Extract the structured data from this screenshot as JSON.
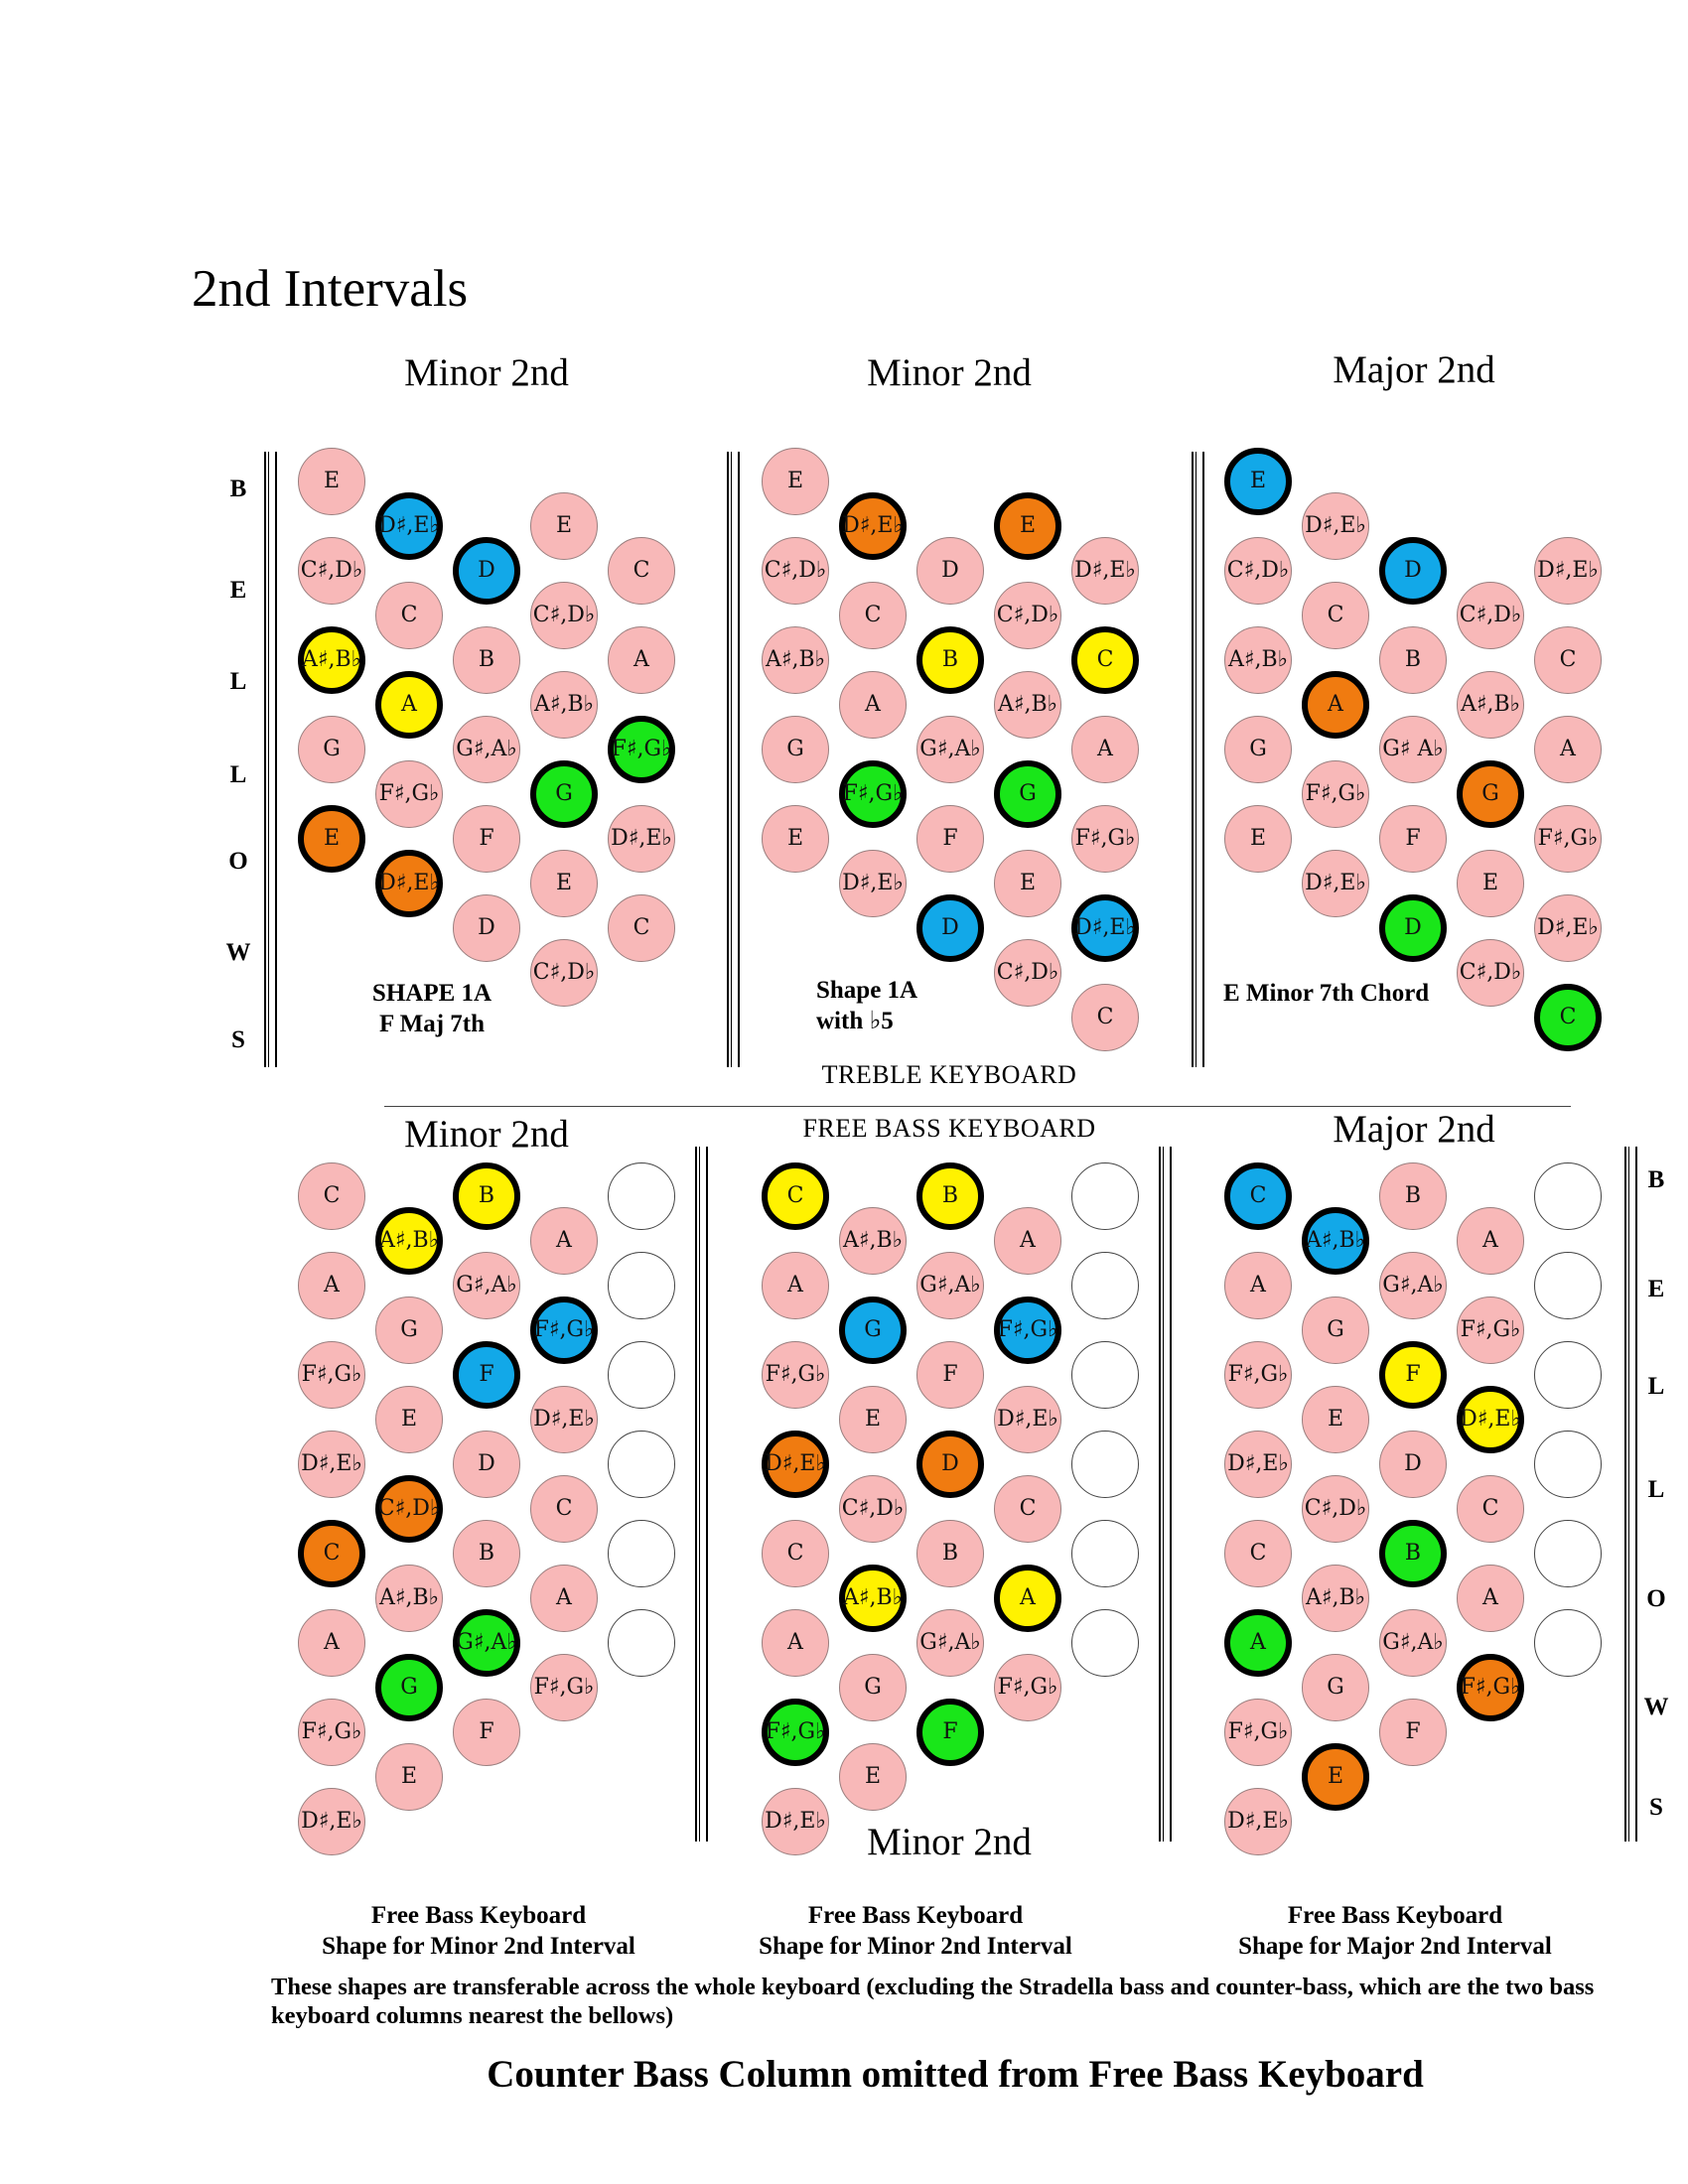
{
  "page_title": "2nd Intervals",
  "colors": {
    "pink": "#f8b8b8",
    "orange": "#f07b10",
    "blue": "#12a8e8",
    "yellow": "#fff200",
    "green": "#19e619",
    "empty": "#ffffff"
  },
  "bellows_letters": [
    "B",
    "E",
    "L",
    "L",
    "O",
    "W",
    "S"
  ],
  "treble_label": "TREBLE KEYBOARD",
  "free_bass_label": "FREE BASS KEYBOARD",
  "footer": "Counter Bass Column omitted from Free Bass Keyboard",
  "note": "These shapes are transferable across the whole keyboard (excluding the Stradella bass and counter-bass, which are the two bass keyboard columns nearest the bellows)",
  "panels": [
    {
      "title": "Minor 2nd",
      "caption_lines": [
        "SHAPE 1A",
        "F Maj 7th"
      ],
      "columns": [
        [
          {
            "n": "E"
          },
          {
            "n": "C♯,D♭"
          },
          {
            "n": "A♯,B♭",
            "c": "yellow"
          },
          {
            "n": "G"
          },
          {
            "n": "E",
            "c": "orange"
          }
        ],
        [
          {
            "n": "D♯,E♭",
            "c": "blue"
          },
          {
            "n": "C"
          },
          {
            "n": "A",
            "c": "yellow"
          },
          {
            "n": "F♯,G♭"
          },
          {
            "n": "D♯,E♭",
            "c": "orange"
          }
        ],
        [
          {
            "n": "D",
            "c": "blue"
          },
          {
            "n": "B"
          },
          {
            "n": "G♯,A♭"
          },
          {
            "n": "F"
          },
          {
            "n": "D"
          }
        ],
        [
          {
            "n": "E"
          },
          {
            "n": "C♯,D♭"
          },
          {
            "n": "A♯,B♭"
          },
          {
            "n": "G",
            "c": "green"
          },
          {
            "n": "E"
          },
          {
            "n": "C♯,D♭"
          }
        ],
        [
          {
            "n": "C"
          },
          {
            "n": "A"
          },
          {
            "n": "F♯,G♭",
            "c": "green"
          },
          {
            "n": "D♯,E♭"
          },
          {
            "n": "C"
          }
        ]
      ]
    },
    {
      "title": "Minor 2nd",
      "caption_lines": [
        "Shape 1A",
        "with ♭5"
      ],
      "columns": [
        [
          {
            "n": "E"
          },
          {
            "n": "C♯,D♭"
          },
          {
            "n": "A♯,B♭"
          },
          {
            "n": "G"
          },
          {
            "n": "E"
          }
        ],
        [
          {
            "n": "D♯,E♭",
            "c": "orange"
          },
          {
            "n": "C"
          },
          {
            "n": "A"
          },
          {
            "n": "F♯,G♭",
            "c": "green"
          },
          {
            "n": "D♯,E♭"
          }
        ],
        [
          {
            "n": "D"
          },
          {
            "n": "B",
            "c": "yellow"
          },
          {
            "n": "G♯,A♭"
          },
          {
            "n": "F"
          },
          {
            "n": "D",
            "c": "blue"
          }
        ],
        [
          {
            "n": "E",
            "c": "orange"
          },
          {
            "n": "C♯,D♭"
          },
          {
            "n": "A♯,B♭"
          },
          {
            "n": "G",
            "c": "green"
          },
          {
            "n": "E"
          },
          {
            "n": "C♯,D♭"
          }
        ],
        [
          {
            "n": "D♯,E♭"
          },
          {
            "n": "C",
            "c": "yellow"
          },
          {
            "n": "A"
          },
          {
            "n": "F♯,G♭"
          },
          {
            "n": "D♯,E♭",
            "c": "blue"
          },
          {
            "n": "C"
          }
        ]
      ]
    },
    {
      "title": "Major 2nd",
      "caption_lines": [
        "E Minor 7th Chord"
      ],
      "columns": [
        [
          {
            "n": "E",
            "c": "blue"
          },
          {
            "n": "C♯,D♭"
          },
          {
            "n": "A♯,B♭"
          },
          {
            "n": "G"
          },
          {
            "n": "E"
          }
        ],
        [
          {
            "n": "D♯,E♭"
          },
          {
            "n": "C"
          },
          {
            "n": "A",
            "c": "orange"
          },
          {
            "n": "F♯,G♭"
          },
          {
            "n": "D♯,E♭"
          }
        ],
        [
          {
            "n": "D",
            "c": "blue"
          },
          {
            "n": "B"
          },
          {
            "n": "G♯ A♭"
          },
          {
            "n": "F"
          },
          {
            "n": "D",
            "c": "green"
          }
        ],
        [
          {
            "n": "C♯,D♭"
          },
          {
            "n": "A♯,B♭"
          },
          {
            "n": "G",
            "c": "orange"
          },
          {
            "n": "E"
          },
          {
            "n": "C♯,D♭"
          }
        ],
        [
          {
            "n": "D♯,E♭"
          },
          {
            "n": "C"
          },
          {
            "n": "A"
          },
          {
            "n": "F♯,G♭"
          },
          {
            "n": "D♯,E♭"
          },
          {
            "n": "C",
            "c": "green"
          }
        ]
      ]
    },
    {
      "title": "Minor 2nd",
      "caption_lines": [
        "Free Bass Keyboard",
        "Shape for Minor 2nd Interval"
      ],
      "columns": [
        [
          {
            "n": "C"
          },
          {
            "n": "A"
          },
          {
            "n": "F♯,G♭"
          },
          {
            "n": "D♯,E♭"
          },
          {
            "n": "C",
            "c": "orange"
          },
          {
            "n": "A"
          },
          {
            "n": "F♯,G♭"
          },
          {
            "n": "D♯,E♭"
          }
        ],
        [
          {
            "n": "A♯,B♭",
            "c": "yellow"
          },
          {
            "n": "G"
          },
          {
            "n": "E"
          },
          {
            "n": "C♯,D♭",
            "c": "orange"
          },
          {
            "n": "A♯,B♭"
          },
          {
            "n": "G",
            "c": "green"
          },
          {
            "n": "E"
          }
        ],
        [
          {
            "n": "B",
            "c": "yellow"
          },
          {
            "n": "G♯,A♭"
          },
          {
            "n": "F",
            "c": "blue"
          },
          {
            "n": "D"
          },
          {
            "n": "B"
          },
          {
            "n": "G♯,A♭",
            "c": "green"
          },
          {
            "n": "F"
          }
        ],
        [
          {
            "n": "A"
          },
          {
            "n": "F♯,G♭",
            "c": "blue"
          },
          {
            "n": "D♯,E♭"
          },
          {
            "n": "C"
          },
          {
            "n": "A"
          },
          {
            "n": "F♯,G♭"
          }
        ],
        [
          {
            "n": "",
            "c": "empty"
          },
          {
            "n": "",
            "c": "empty"
          },
          {
            "n": "",
            "c": "empty"
          },
          {
            "n": "",
            "c": "empty"
          },
          {
            "n": "",
            "c": "empty"
          },
          {
            "n": "",
            "c": "empty"
          }
        ]
      ]
    },
    {
      "title": "Minor 2nd",
      "caption_lines": [
        "Free Bass Keyboard",
        "Shape for Minor 2nd Interval"
      ],
      "columns": [
        [
          {
            "n": "C",
            "c": "yellow"
          },
          {
            "n": "A"
          },
          {
            "n": "F♯,G♭"
          },
          {
            "n": "D♯,E♭",
            "c": "orange"
          },
          {
            "n": "C"
          },
          {
            "n": "A"
          },
          {
            "n": "F♯,G♭",
            "c": "green"
          },
          {
            "n": "D♯,E♭"
          }
        ],
        [
          {
            "n": "A♯,B♭"
          },
          {
            "n": "G",
            "c": "blue"
          },
          {
            "n": "E"
          },
          {
            "n": "C♯,D♭"
          },
          {
            "n": "A♯,B♭",
            "c": "yellow"
          },
          {
            "n": "G"
          },
          {
            "n": "E"
          }
        ],
        [
          {
            "n": "B",
            "c": "yellow"
          },
          {
            "n": "G♯,A♭"
          },
          {
            "n": "F"
          },
          {
            "n": "D",
            "c": "orange"
          },
          {
            "n": "B"
          },
          {
            "n": "G♯,A♭"
          },
          {
            "n": "F",
            "c": "green"
          }
        ],
        [
          {
            "n": "A"
          },
          {
            "n": "F♯,G♭",
            "c": "blue"
          },
          {
            "n": "D♯,E♭"
          },
          {
            "n": "C"
          },
          {
            "n": "A",
            "c": "yellow"
          },
          {
            "n": "F♯,G♭"
          }
        ],
        [
          {
            "n": "",
            "c": "empty"
          },
          {
            "n": "",
            "c": "empty"
          },
          {
            "n": "",
            "c": "empty"
          },
          {
            "n": "",
            "c": "empty"
          },
          {
            "n": "",
            "c": "empty"
          },
          {
            "n": "",
            "c": "empty"
          }
        ]
      ]
    },
    {
      "title": "Major 2nd",
      "caption_lines": [
        "Free Bass Keyboard",
        "Shape for Major 2nd Interval"
      ],
      "columns": [
        [
          {
            "n": "C",
            "c": "blue"
          },
          {
            "n": "A"
          },
          {
            "n": "F♯,G♭"
          },
          {
            "n": "D♯,E♭"
          },
          {
            "n": "C"
          },
          {
            "n": "A",
            "c": "green"
          },
          {
            "n": "F♯,G♭"
          },
          {
            "n": "D♯,E♭"
          }
        ],
        [
          {
            "n": "A♯,B♭",
            "c": "blue"
          },
          {
            "n": "G"
          },
          {
            "n": "E"
          },
          {
            "n": "C♯,D♭"
          },
          {
            "n": "A♯,B♭"
          },
          {
            "n": "G"
          },
          {
            "n": "E",
            "c": "orange"
          }
        ],
        [
          {
            "n": "B"
          },
          {
            "n": "G♯,A♭"
          },
          {
            "n": "F",
            "c": "yellow"
          },
          {
            "n": "D"
          },
          {
            "n": "B",
            "c": "green"
          },
          {
            "n": "G♯,A♭"
          },
          {
            "n": "F"
          }
        ],
        [
          {
            "n": "A"
          },
          {
            "n": "F♯,G♭"
          },
          {
            "n": "D♯,E♭",
            "c": "yellow"
          },
          {
            "n": "C"
          },
          {
            "n": "A"
          },
          {
            "n": "F♯,G♭",
            "c": "orange"
          }
        ],
        [
          {
            "n": "",
            "c": "empty"
          },
          {
            "n": "",
            "c": "empty"
          },
          {
            "n": "",
            "c": "empty"
          },
          {
            "n": "",
            "c": "empty"
          },
          {
            "n": "",
            "c": "empty"
          },
          {
            "n": "",
            "c": "empty"
          }
        ]
      ]
    }
  ]
}
